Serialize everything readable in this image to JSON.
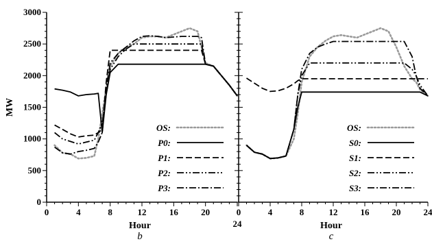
{
  "chart_data": [
    {
      "type": "line",
      "panel_label": "b",
      "xlabel": "Hour",
      "ylabel": "MW",
      "xlim": [
        0,
        24
      ],
      "ylim": [
        0,
        3000
      ],
      "x_ticks": [
        "0",
        "4",
        "8",
        "12",
        "16",
        "20",
        "24"
      ],
      "y_ticks": [
        "0",
        "500",
        "1000",
        "1500",
        "2000",
        "2500",
        "3000"
      ],
      "grid": false,
      "legend_position": "bottom-right",
      "x": [
        1,
        2,
        3,
        4,
        5,
        6,
        6.5,
        7,
        7.5,
        8,
        9,
        10,
        11,
        12,
        13,
        14,
        15,
        16,
        17,
        18,
        19,
        19.5,
        20,
        21,
        22,
        23,
        24
      ],
      "series": [
        {
          "name": "OS:",
          "dash": "dotted",
          "color": "#9a9a9a",
          "values": [
            900,
            780,
            760,
            690,
            700,
            730,
            1000,
            1400,
            1800,
            2150,
            2350,
            2450,
            2500,
            2600,
            2620,
            2620,
            2600,
            2650,
            2700,
            2750,
            2700,
            2450,
            2200,
            2150,
            2000,
            1850,
            1680
          ]
        },
        {
          "name": "P0:",
          "dash": "solid",
          "color": "#000000",
          "values": [
            1790,
            1770,
            1740,
            1680,
            1700,
            1710,
            1720,
            1100,
            1700,
            2050,
            2180,
            2180,
            2180,
            2180,
            2180,
            2180,
            2180,
            2180,
            2180,
            2180,
            2180,
            2180,
            2180,
            2150,
            2000,
            1850,
            1680
          ]
        },
        {
          "name": "P1:",
          "dash": "dashed",
          "color": "#000000",
          "values": [
            1220,
            1150,
            1080,
            1030,
            1050,
            1060,
            1100,
            1150,
            1900,
            2400,
            2400,
            2400,
            2400,
            2400,
            2400,
            2400,
            2400,
            2400,
            2400,
            2400,
            2400,
            2400,
            2180,
            2150,
            2000,
            1850,
            1680
          ]
        },
        {
          "name": "P2:",
          "dash": "dash-dot-dot",
          "color": "#000000",
          "values": [
            1100,
            1000,
            960,
            920,
            950,
            980,
            1100,
            1250,
            1700,
            2100,
            2300,
            2420,
            2500,
            2500,
            2500,
            2500,
            2500,
            2500,
            2500,
            2500,
            2500,
            2500,
            2180,
            2150,
            2000,
            1850,
            1680
          ]
        },
        {
          "name": "P3:",
          "dash": "dash-dot",
          "color": "#000000",
          "values": [
            870,
            780,
            760,
            800,
            820,
            850,
            950,
            1100,
            1800,
            2200,
            2350,
            2450,
            2550,
            2620,
            2630,
            2620,
            2600,
            2610,
            2620,
            2620,
            2620,
            2600,
            2180,
            2150,
            2000,
            1850,
            1680
          ]
        }
      ]
    },
    {
      "type": "line",
      "panel_label": "c",
      "xlabel": "Hour",
      "ylabel": "",
      "xlim": [
        0,
        24
      ],
      "ylim": [
        0,
        3000
      ],
      "x_ticks": [
        "0",
        "4",
        "8",
        "12",
        "16",
        "20",
        "24"
      ],
      "y_ticks": [],
      "grid": false,
      "legend_position": "bottom-right",
      "x": [
        1,
        2,
        3,
        4,
        5,
        6,
        7,
        7.5,
        8,
        9,
        10,
        11,
        12,
        13,
        14,
        15,
        16,
        17,
        18,
        19,
        20,
        21,
        22,
        22.5,
        23,
        24
      ],
      "series": [
        {
          "name": "OS:",
          "dash": "dotted",
          "color": "#9a9a9a",
          "values": [
            900,
            790,
            760,
            690,
            700,
            730,
            1000,
            1400,
            1900,
            2300,
            2450,
            2550,
            2620,
            2640,
            2620,
            2600,
            2650,
            2700,
            2750,
            2700,
            2450,
            2150,
            1950,
            1900,
            1780,
            1680
          ]
        },
        {
          "name": "S0:",
          "dash": "solid",
          "color": "#000000",
          "values": [
            900,
            790,
            760,
            690,
            700,
            730,
            1150,
            1500,
            1740,
            1740,
            1740,
            1740,
            1740,
            1740,
            1740,
            1740,
            1740,
            1740,
            1740,
            1740,
            1740,
            1740,
            1740,
            1740,
            1740,
            1680
          ]
        },
        {
          "name": "S1:",
          "dash": "dashed",
          "color": "#000000",
          "values": [
            1960,
            1880,
            1800,
            1750,
            1760,
            1800,
            1870,
            1920,
            1950,
            1950,
            1950,
            1950,
            1950,
            1950,
            1950,
            1950,
            1950,
            1950,
            1950,
            1950,
            1950,
            1950,
            1950,
            1950,
            1950,
            1950
          ]
        },
        {
          "name": "S2:",
          "dash": "dash-dot-dot",
          "color": "#000000",
          "values": [
            900,
            790,
            760,
            690,
            700,
            730,
            1150,
            1700,
            2000,
            2200,
            2200,
            2200,
            2200,
            2200,
            2200,
            2200,
            2200,
            2200,
            2200,
            2200,
            2200,
            2200,
            2100,
            2000,
            1850,
            1680
          ]
        },
        {
          "name": "S3:",
          "dash": "dash-dot",
          "color": "#000000",
          "values": [
            900,
            790,
            760,
            690,
            700,
            730,
            1150,
            1700,
            2100,
            2350,
            2450,
            2500,
            2540,
            2540,
            2540,
            2540,
            2540,
            2540,
            2540,
            2540,
            2540,
            2540,
            2300,
            2000,
            1800,
            1680
          ]
        }
      ]
    }
  ]
}
